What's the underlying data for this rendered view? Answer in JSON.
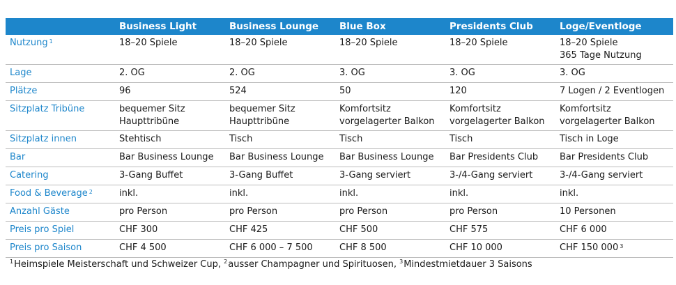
{
  "header": {
    "col0": "",
    "cols": [
      "Business Light",
      "Business Lounge",
      "Blue Box",
      "Presidents Club",
      "Loge/Eventloge"
    ]
  },
  "rows": {
    "nutzung": {
      "label": "Nutzung",
      "sup": "1",
      "c1": "18–20 Spiele",
      "c2": "18–20 Spiele",
      "c3": "18–20 Spiele",
      "c4": "18–20 Spiele",
      "c5a": "18–20 Spiele",
      "c5b": "365 Tage Nutzung"
    },
    "lage": {
      "label": "Lage",
      "c1": "2. OG",
      "c2": "2. OG",
      "c3": "3. OG",
      "c4": "3. OG",
      "c5": "3. OG"
    },
    "plaetze": {
      "label": "Plätze",
      "c1": "96",
      "c2": "524",
      "c3": "50",
      "c4": "120",
      "c5": "7 Logen / 2 Eventlogen"
    },
    "sitzplatz_tribuene": {
      "label": "Sitzplatz Tribüne",
      "c1a": "bequemer Sitz",
      "c1b": "Haupttribüne",
      "c2a": "bequemer Sitz",
      "c2b": "Haupttribüne",
      "c3a": "Komfortsitz",
      "c3b": "vorgelagerter Balkon",
      "c4a": "Komfortsitz",
      "c4b": "vorgelagerter Balkon",
      "c5a": "Komfortsitz",
      "c5b": "vorgelagerter Balkon"
    },
    "sitzplatz_innen": {
      "label": "Sitzplatz innen",
      "c1": "Stehtisch",
      "c2": "Tisch",
      "c3": "Tisch",
      "c4": "Tisch",
      "c5": "Tisch in Loge"
    },
    "bar": {
      "label": "Bar",
      "c1": "Bar Business Lounge",
      "c2": "Bar Business Lounge",
      "c3": "Bar Business Lounge",
      "c4": "Bar Presidents Club",
      "c5": "Bar Presidents Club"
    },
    "catering": {
      "label": "Catering",
      "c1": "3-Gang Buffet",
      "c2": "3-Gang Buffet",
      "c3": "3-Gang serviert",
      "c4": "3-/4-Gang serviert",
      "c5": "3-/4-Gang serviert"
    },
    "food": {
      "label": "Food & Beverage",
      "sup": "2",
      "c1": "inkl.",
      "c2": "inkl.",
      "c3": "inkl.",
      "c4": "inkl.",
      "c5": "inkl."
    },
    "gaeste": {
      "label": "Anzahl Gäste",
      "c1": "pro Person",
      "c2": "pro Person",
      "c3": "pro Person",
      "c4": "pro Person",
      "c5": "10 Personen"
    },
    "preis_spiel": {
      "label": "Preis pro Spiel",
      "c1": "CHF 300",
      "c2": "CHF 425",
      "c3": "CHF 500",
      "c4": "CHF 575",
      "c5": "CHF 6 000"
    },
    "preis_saison": {
      "label": "Preis pro Saison",
      "c1": "CHF 4 500",
      "c2": "CHF 6 000 – 7 500",
      "c3": "CHF 8 500",
      "c4": "CHF 10 000",
      "c5": "CHF 150 000",
      "c5_sup": "3"
    }
  },
  "footnotes": [
    {
      "num": "1",
      "text": "Heimspiele Meisterschaft und Schweizer Cup,"
    },
    {
      "num": "2",
      "text": "ausser Champagner und Spirituosen,"
    },
    {
      "num": "3",
      "text": "Mindestmietdauer 3 Saisons"
    }
  ],
  "colors": {
    "accent": "#1d86cb",
    "divider": "#bcbcbc"
  }
}
